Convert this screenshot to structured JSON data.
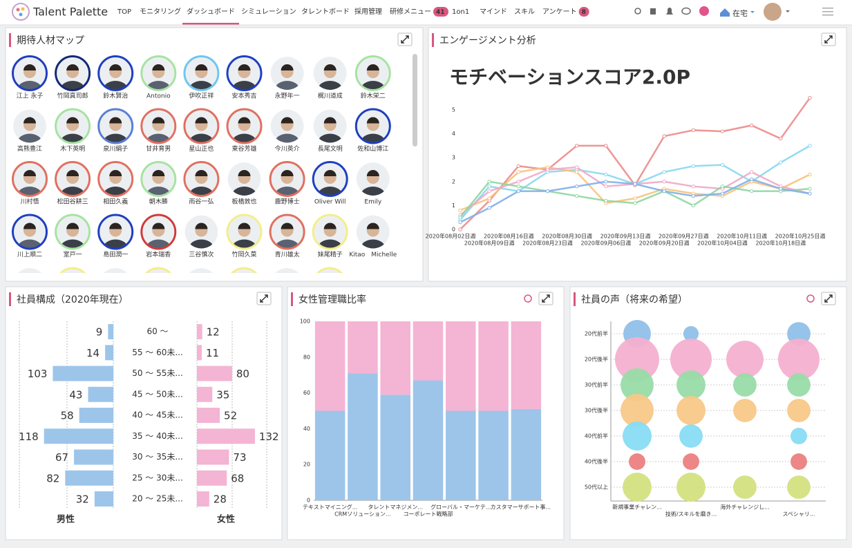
{
  "header": {
    "logo": "Talent Palette",
    "status": "在宅",
    "nav": [
      {
        "label": "TOP"
      },
      {
        "label": "モニタリング"
      },
      {
        "label": "ダッシュボード",
        "active": true
      },
      {
        "label": "シミュレーション"
      },
      {
        "label": "タレントボード"
      },
      {
        "label": "採用管理"
      },
      {
        "label": "研修メニュー",
        "badge": 41
      },
      {
        "label": "1on1"
      },
      {
        "label": "マインド"
      },
      {
        "label": "スキル"
      },
      {
        "label": "アンケート",
        "badge": 8
      }
    ]
  },
  "talent_map": {
    "title": "期待人材マップ",
    "people": [
      {
        "name": "江上 永子",
        "ring": "#1f3fbf"
      },
      {
        "name": "竹岡真司郎",
        "ring": "#14287a"
      },
      {
        "name": "鈴木賢治",
        "ring": "#1f3fbf"
      },
      {
        "name": "Antonio",
        "ring": "#a6e3a1"
      },
      {
        "name": "伊吹正祥",
        "ring": "#6ec6f0"
      },
      {
        "name": "安本秀吉",
        "ring": "#1f3fbf"
      },
      {
        "name": "永野年一"
      },
      {
        "name": "梶川道成"
      },
      {
        "name": "鈴木栄二",
        "ring": "#a6e3a1"
      },
      {
        "name": "高熊豊江"
      },
      {
        "name": "木下英明",
        "ring": "#a6e3a1"
      },
      {
        "name": "泉川絹子",
        "ring": "#5b7fd6"
      },
      {
        "name": "甘井育男",
        "ring": "#e07060"
      },
      {
        "name": "星山正也",
        "ring": "#e07060"
      },
      {
        "name": "東谷芳雄",
        "ring": "#e07060"
      },
      {
        "name": "今川英介"
      },
      {
        "name": "長尾文明"
      },
      {
        "name": "佐和山博江",
        "ring": "#1f3fbf"
      },
      {
        "name": "川村悟",
        "ring": "#e07060"
      },
      {
        "name": "松田谷耕三",
        "ring": "#e07060"
      },
      {
        "name": "相田久義",
        "ring": "#e07060"
      },
      {
        "name": "朝木勝",
        "ring": "#a6e3a1"
      },
      {
        "name": "雨谷一弘",
        "ring": "#e07060"
      },
      {
        "name": "板橋敦也"
      },
      {
        "name": "鹿野博士",
        "ring": "#e07060"
      },
      {
        "name": "Oliver Will",
        "ring": "#1f3fbf"
      },
      {
        "name": "Emily"
      },
      {
        "name": "川上順二",
        "ring": "#1f3fbf"
      },
      {
        "name": "室戸一",
        "ring": "#a6e3a1"
      },
      {
        "name": "島田潤一",
        "ring": "#1f3fbf"
      },
      {
        "name": "岩本瑞香",
        "ring": "#d03a3a"
      },
      {
        "name": "三谷慎次"
      },
      {
        "name": "竹岡久菜",
        "ring": "#f4ee8a"
      },
      {
        "name": "青川雄太",
        "ring": "#e07060"
      },
      {
        "name": "妹尾精子",
        "ring": "#f4ee8a"
      },
      {
        "name": "Kitao　Michelle"
      }
    ]
  },
  "chart_data": [
    {
      "type": "line",
      "title": "エンゲージメント分析",
      "annotation": "モチベーションスコア2.0P",
      "categories": [
        "2020年08月02日週",
        "2020年08月09日週",
        "2020年08月16日週",
        "2020年08月23日週",
        "2020年08月30日週",
        "2020年09月06日週",
        "2020年09月13日週",
        "2020年09月20日週",
        "2020年09月27日週",
        "2020年10月04日週",
        "2020年10月11日週",
        "2020年10月18日週",
        "2020年10月25日週"
      ],
      "ylim": [
        0,
        6
      ],
      "yticks": [
        0,
        1,
        2,
        3,
        4,
        5
      ],
      "series": [
        {
          "color": "#ec8a8a",
          "values": [
            0,
            1.2,
            2.65,
            2.5,
            3.5,
            3.5,
            1.85,
            3.9,
            4.15,
            4.1,
            4.35,
            3.8,
            5.5
          ]
        },
        {
          "color": "#86d8f0",
          "values": [
            0.4,
            1.8,
            1.6,
            2.4,
            2.5,
            2.3,
            1.9,
            2.4,
            2.65,
            2.7,
            2.0,
            2.8,
            3.5
          ]
        },
        {
          "color": "#f7c27a",
          "values": [
            0.8,
            1.3,
            2.4,
            2.6,
            2.4,
            1.1,
            1.3,
            1.7,
            1.5,
            1.4,
            2.0,
            1.7,
            2.3
          ]
        },
        {
          "color": "#f0a8c8",
          "values": [
            0.6,
            1.6,
            2.0,
            2.5,
            2.6,
            1.8,
            1.9,
            2.0,
            1.8,
            1.7,
            2.4,
            1.8,
            1.5
          ]
        },
        {
          "color": "#8fd6a0",
          "values": [
            0.5,
            2.0,
            1.8,
            1.6,
            1.4,
            1.2,
            1.1,
            1.6,
            1.0,
            1.8,
            1.6,
            1.6,
            1.7
          ]
        },
        {
          "color": "#80b0e8",
          "values": [
            0.3,
            0.9,
            1.6,
            1.6,
            1.8,
            2.0,
            1.9,
            1.6,
            1.4,
            1.5,
            2.1,
            1.7,
            1.5
          ]
        }
      ]
    },
    {
      "type": "pyramid",
      "title": "社員構成（2020年現在）",
      "categories": [
        "60 ～",
        "55 ～ 60未...",
        "50 ～ 55未...",
        "45 ～ 50未...",
        "40 ～ 45未...",
        "35 ～ 40未...",
        "30 ～ 35未...",
        "25 ～ 30未...",
        "20 ～ 25未..."
      ],
      "series": [
        {
          "name": "男性",
          "color": "#9dc5ea",
          "xlim": [
            0,
            120
          ],
          "values": [
            9,
            14,
            103,
            43,
            58,
            118,
            67,
            82,
            32
          ]
        },
        {
          "name": "女性",
          "color": "#f4b4d4",
          "xlim": [
            0,
            140
          ],
          "values": [
            12,
            11,
            80,
            35,
            52,
            132,
            73,
            68,
            28
          ]
        }
      ]
    },
    {
      "type": "bar",
      "stacked": true,
      "title": "女性管理職比率",
      "categories": [
        "テキストマイニング...",
        "CRMソリューション...",
        "タレントマネジメン...",
        "コーポレート戦略部",
        "グローバル・マーケテ...",
        null,
        "カスタマーサポート事..."
      ],
      "ylim": [
        0,
        100
      ],
      "yticks": [
        0,
        20,
        40,
        60,
        80,
        100
      ],
      "series": [
        {
          "color": "#9dc5ea",
          "values": [
            50,
            71,
            59,
            67,
            50,
            50,
            51
          ]
        },
        {
          "color": "#f4b4d4",
          "values": [
            50,
            29,
            41,
            33,
            50,
            50,
            49
          ]
        }
      ]
    },
    {
      "type": "bubble",
      "title": "社員の声（将来の希望）",
      "categories": [
        "新規事業チャレン...",
        "技術/スキルを磨き...",
        "海外チャレンジし...",
        "スペシャリ..."
      ],
      "rows": [
        "20代前半",
        "20代後半",
        "30代前半",
        "30代後半",
        "40代前半",
        "40代後半",
        "50代以上"
      ],
      "series": [
        {
          "color": "#90c0e8",
          "sizes": [
            39,
            12,
            null,
            28
          ]
        },
        {
          "color": "#f4b0d0",
          "sizes": [
            100,
            88,
            71,
            88
          ]
        },
        {
          "color": "#98dca8",
          "sizes": [
            56,
            43,
            28,
            28
          ]
        },
        {
          "color": "#f8c888",
          "sizes": [
            56,
            43,
            28,
            28
          ]
        },
        {
          "color": "#88dcf4",
          "sizes": [
            43,
            28,
            null,
            14
          ]
        },
        {
          "color": "#ec8080",
          "sizes": [
            14,
            14,
            null,
            14
          ]
        },
        {
          "color": "#d4e080",
          "sizes": [
            43,
            43,
            28,
            28
          ]
        }
      ]
    }
  ]
}
